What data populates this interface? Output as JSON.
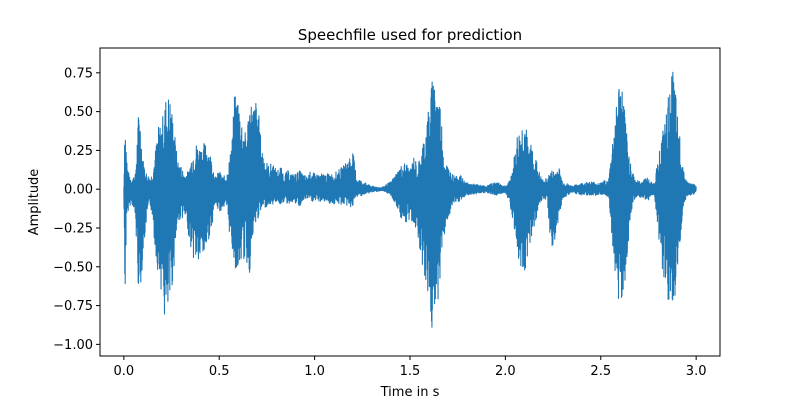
{
  "chart_data": {
    "type": "line",
    "title": "Speechfile used for prediction",
    "xlabel": "Time in s",
    "ylabel": "Amplitude",
    "xlim": [
      -0.125,
      3.125
    ],
    "ylim": [
      -1.075,
      0.91
    ],
    "x_ticks": [
      0.0,
      0.5,
      1.0,
      1.5,
      2.0,
      2.5,
      3.0
    ],
    "x_tick_labels": [
      "0.0",
      "0.5",
      "1.0",
      "1.5",
      "2.0",
      "2.5",
      "3.0"
    ],
    "y_ticks": [
      0.75,
      0.5,
      0.25,
      0.0,
      -0.25,
      -0.5,
      -0.75,
      -1.0
    ],
    "y_tick_labels": [
      "0.75",
      "0.50",
      "0.25",
      "0.00",
      "−0.25",
      "−0.50",
      "−0.75",
      "−1.00"
    ],
    "grid": false,
    "legend": "none",
    "series": [
      {
        "color": "#1f77b4",
        "envelope": {
          "x": [
            0.0,
            0.005,
            0.01,
            0.02,
            0.04,
            0.06,
            0.08,
            0.1,
            0.12,
            0.14,
            0.15,
            0.16,
            0.18,
            0.2,
            0.22,
            0.24,
            0.26,
            0.28,
            0.3,
            0.32,
            0.34,
            0.36,
            0.38,
            0.4,
            0.42,
            0.44,
            0.46,
            0.48,
            0.5,
            0.52,
            0.54,
            0.56,
            0.58,
            0.6,
            0.62,
            0.64,
            0.66,
            0.68,
            0.7,
            0.72,
            0.74,
            0.76,
            0.78,
            0.8,
            0.82,
            0.84,
            0.86,
            0.88,
            0.9,
            0.92,
            0.94,
            0.96,
            0.98,
            1.0,
            1.05,
            1.1,
            1.15,
            1.2,
            1.22,
            1.25,
            1.3,
            1.35,
            1.4,
            1.45,
            1.48,
            1.5,
            1.52,
            1.54,
            1.56,
            1.58,
            1.6,
            1.62,
            1.64,
            1.66,
            1.68,
            1.7,
            1.72,
            1.74,
            1.76,
            1.78,
            1.8,
            1.85,
            1.9,
            1.95,
            2.0,
            2.02,
            2.04,
            2.06,
            2.08,
            2.1,
            2.12,
            2.14,
            2.16,
            2.18,
            2.2,
            2.22,
            2.24,
            2.26,
            2.28,
            2.3,
            2.35,
            2.4,
            2.45,
            2.5,
            2.52,
            2.54,
            2.56,
            2.58,
            2.6,
            2.62,
            2.64,
            2.66,
            2.68,
            2.7,
            2.72,
            2.74,
            2.76,
            2.78,
            2.8,
            2.82,
            2.84,
            2.86,
            2.88,
            2.9,
            2.92,
            2.94,
            2.96,
            2.98,
            3.0
          ],
          "max": [
            0.02,
            0.55,
            0.35,
            0.12,
            0.07,
            0.1,
            0.58,
            0.2,
            0.1,
            0.08,
            0.12,
            0.2,
            0.4,
            0.45,
            0.6,
            0.62,
            0.45,
            0.2,
            0.15,
            0.1,
            0.12,
            0.25,
            0.3,
            0.28,
            0.3,
            0.3,
            0.2,
            0.08,
            0.12,
            0.08,
            0.1,
            0.25,
            0.6,
            0.62,
            0.45,
            0.35,
            0.6,
            0.55,
            0.6,
            0.3,
            0.2,
            0.15,
            0.18,
            0.12,
            0.15,
            0.1,
            0.12,
            0.1,
            0.1,
            0.12,
            0.1,
            0.08,
            0.12,
            0.1,
            0.1,
            0.1,
            0.15,
            0.25,
            0.08,
            0.05,
            0.02,
            0.01,
            0.05,
            0.15,
            0.18,
            0.12,
            0.22,
            0.15,
            0.25,
            0.4,
            0.55,
            0.75,
            0.7,
            0.55,
            0.2,
            0.15,
            0.1,
            0.08,
            0.1,
            0.06,
            0.04,
            0.03,
            0.02,
            0.05,
            0.02,
            0.05,
            0.15,
            0.35,
            0.4,
            0.5,
            0.28,
            0.3,
            0.2,
            0.1,
            0.05,
            0.08,
            0.12,
            0.12,
            0.15,
            0.05,
            0.02,
            0.04,
            0.05,
            0.04,
            0.06,
            0.05,
            0.3,
            0.55,
            0.75,
            0.6,
            0.3,
            0.15,
            0.07,
            0.05,
            0.06,
            0.08,
            0.05,
            0.04,
            0.2,
            0.35,
            0.45,
            0.65,
            0.8,
            0.5,
            0.3,
            0.08,
            0.04,
            0.04,
            0.02
          ],
          "min": [
            -0.02,
            -0.8,
            -0.45,
            -0.15,
            -0.08,
            -0.2,
            -0.75,
            -0.45,
            -0.2,
            -0.12,
            -0.18,
            -0.35,
            -0.55,
            -0.68,
            -0.95,
            -0.8,
            -0.55,
            -0.25,
            -0.18,
            -0.2,
            -0.3,
            -0.45,
            -0.48,
            -0.5,
            -0.45,
            -0.35,
            -0.25,
            -0.1,
            -0.15,
            -0.12,
            -0.15,
            -0.35,
            -0.5,
            -0.55,
            -0.45,
            -0.48,
            -0.55,
            -0.3,
            -0.2,
            -0.15,
            -0.12,
            -0.1,
            -0.1,
            -0.08,
            -0.1,
            -0.08,
            -0.1,
            -0.08,
            -0.1,
            -0.12,
            -0.08,
            -0.06,
            -0.08,
            -0.08,
            -0.08,
            -0.1,
            -0.1,
            -0.12,
            -0.05,
            -0.04,
            -0.02,
            -0.01,
            -0.04,
            -0.18,
            -0.25,
            -0.2,
            -0.22,
            -0.3,
            -0.45,
            -0.6,
            -0.75,
            -1.0,
            -0.8,
            -0.55,
            -0.3,
            -0.2,
            -0.12,
            -0.1,
            -0.08,
            -0.06,
            -0.04,
            -0.03,
            -0.02,
            -0.04,
            -0.02,
            -0.08,
            -0.2,
            -0.45,
            -0.5,
            -0.55,
            -0.4,
            -0.3,
            -0.2,
            -0.1,
            -0.06,
            -0.08,
            -0.4,
            -0.35,
            -0.2,
            -0.06,
            -0.02,
            -0.04,
            -0.04,
            -0.04,
            -0.05,
            -0.05,
            -0.35,
            -0.6,
            -0.78,
            -0.7,
            -0.4,
            -0.15,
            -0.06,
            -0.05,
            -0.06,
            -0.08,
            -0.06,
            -0.04,
            -0.25,
            -0.55,
            -0.75,
            -0.85,
            -0.8,
            -0.6,
            -0.3,
            -0.08,
            -0.04,
            -0.04,
            -0.02
          ]
        }
      }
    ]
  }
}
